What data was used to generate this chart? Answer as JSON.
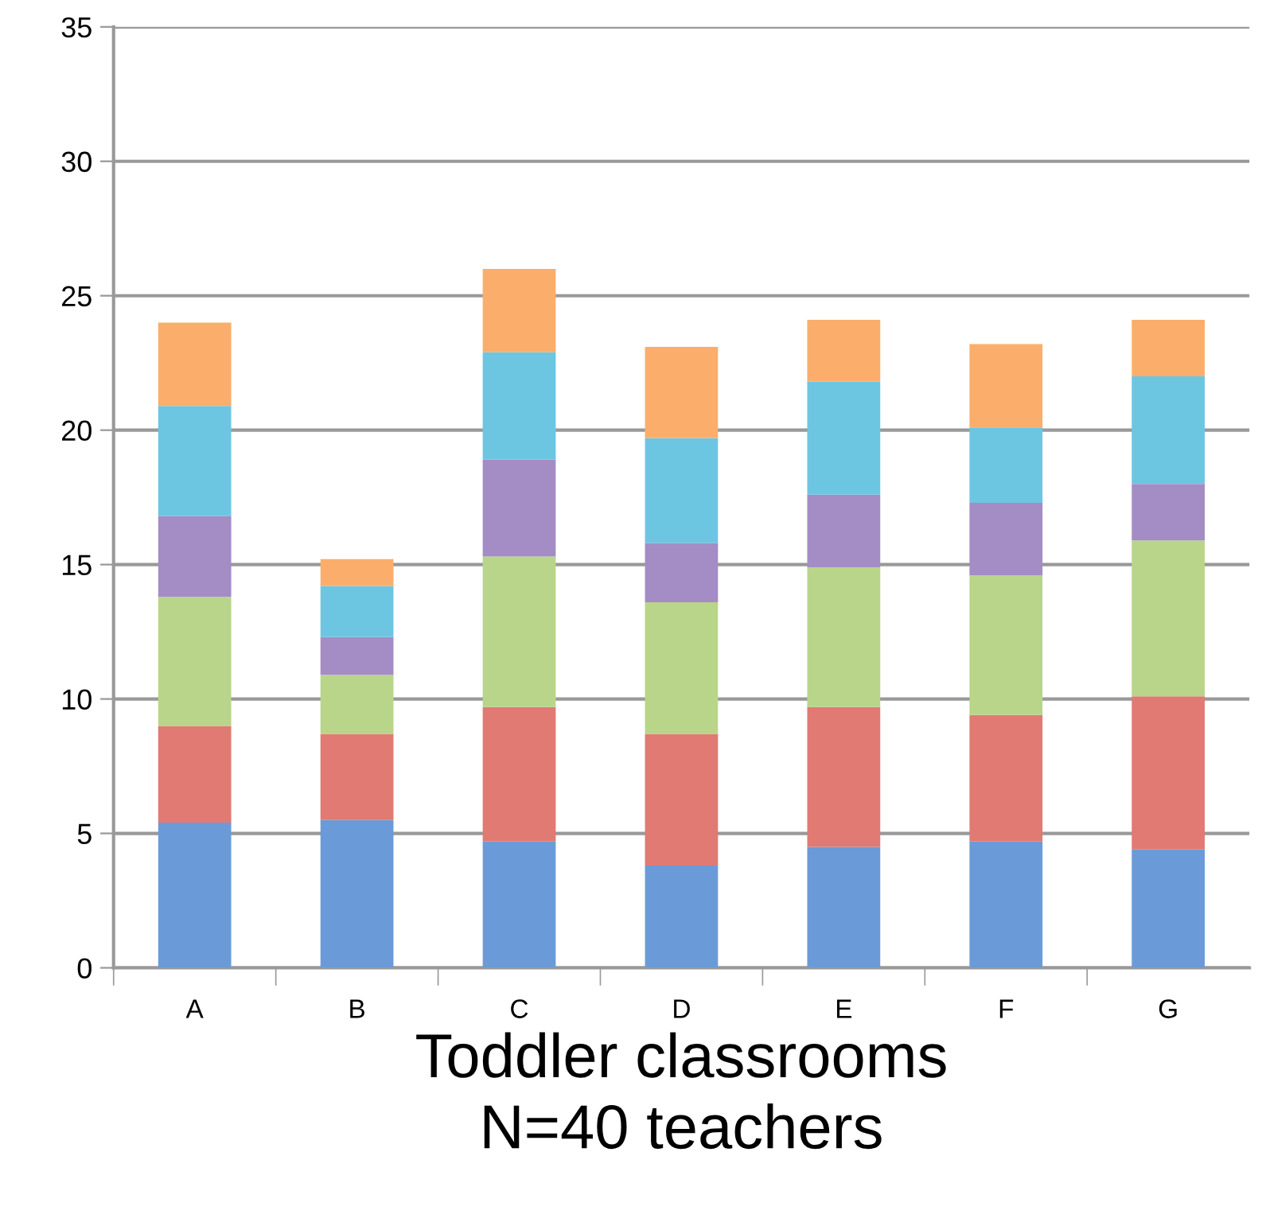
{
  "chart_data": {
    "type": "bar",
    "stacked": true,
    "xlabel": "Toddler classrooms\nN=40 teachers",
    "categories": [
      "A",
      "B",
      "C",
      "D",
      "E",
      "F",
      "G"
    ],
    "series": [
      {
        "color": "#6a9bd8",
        "values": [
          5.4,
          5.5,
          4.7,
          3.8,
          4.5,
          4.7,
          4.4
        ]
      },
      {
        "color": "#e07a72",
        "values": [
          3.6,
          3.2,
          5.0,
          4.9,
          5.2,
          4.7,
          5.7
        ]
      },
      {
        "color": "#b9d58a",
        "values": [
          4.8,
          2.2,
          5.6,
          4.9,
          5.2,
          5.2,
          5.8
        ]
      },
      {
        "color": "#a48cc4",
        "values": [
          3.0,
          1.4,
          3.6,
          2.2,
          2.7,
          2.7,
          2.1
        ]
      },
      {
        "color": "#6cc6e2",
        "values": [
          4.1,
          1.9,
          4.0,
          3.9,
          4.2,
          2.8,
          4.0
        ]
      },
      {
        "color": "#fbae6b",
        "values": [
          3.1,
          1.0,
          3.1,
          3.4,
          2.3,
          3.1,
          2.1
        ]
      }
    ],
    "ylim": [
      0,
      35
    ],
    "yticks": [
      0,
      5,
      10,
      15,
      20,
      25,
      30,
      35
    ],
    "grid": "y",
    "legend": false
  }
}
